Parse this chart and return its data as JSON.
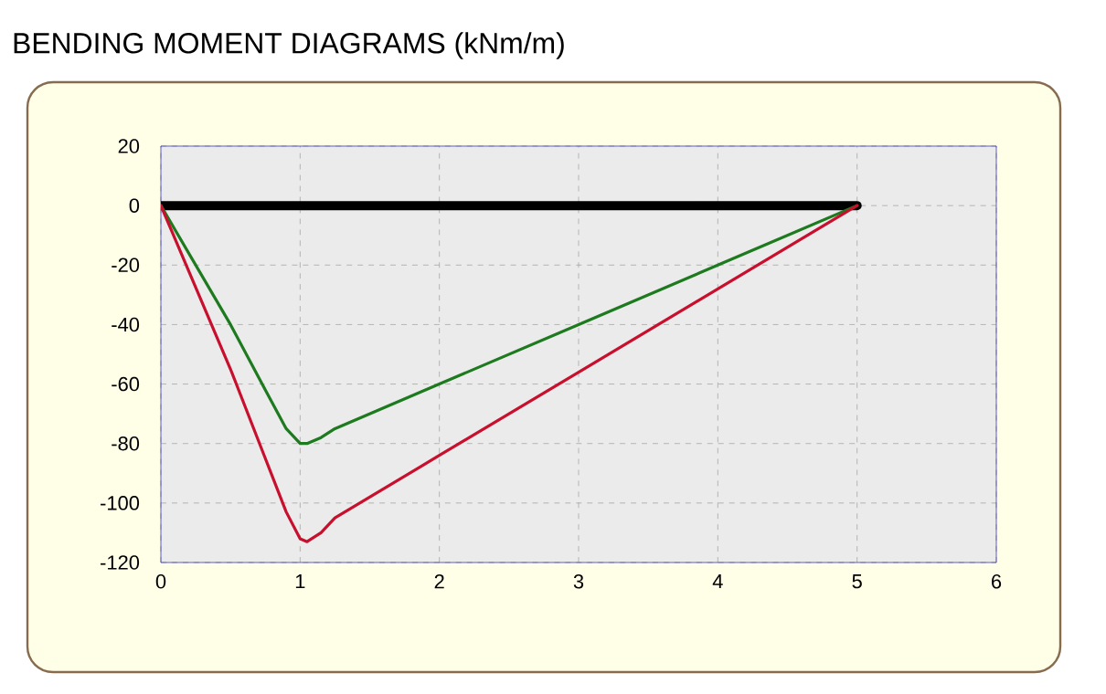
{
  "chart_data": {
    "type": "line",
    "title": "BENDING MOMENT DIAGRAMS (kNm/m)",
    "series": [
      {
        "x": [
          0,
          5
        ],
        "values": [
          0,
          0
        ],
        "color": "#000000"
      },
      {
        "x": [
          0,
          0.5,
          0.75,
          0.9,
          1.0,
          1.05,
          1.15,
          1.25,
          2,
          3,
          4,
          5
        ],
        "values": [
          0,
          -40,
          -62,
          -75,
          -80,
          -80,
          -78,
          -75,
          -60,
          -40,
          -20,
          0
        ],
        "color": "#1e7a1e"
      },
      {
        "x": [
          0,
          0.5,
          0.75,
          0.9,
          1.0,
          1.05,
          1.15,
          1.25,
          2,
          3,
          4,
          5
        ],
        "values": [
          0,
          -55,
          -85,
          -103,
          -112,
          -113,
          -110,
          -105,
          -84,
          -56,
          -28,
          0
        ],
        "color": "#c8102e"
      }
    ],
    "xlim": [
      0,
      6
    ],
    "xticks": [
      0,
      1,
      2,
      3,
      4,
      5,
      6
    ],
    "ylim": [
      -120,
      20
    ],
    "yticks": [
      -120,
      -100,
      -80,
      -60,
      -40,
      -20,
      0,
      20
    ],
    "grid": true,
    "marker": "none",
    "line_style": "solid"
  }
}
